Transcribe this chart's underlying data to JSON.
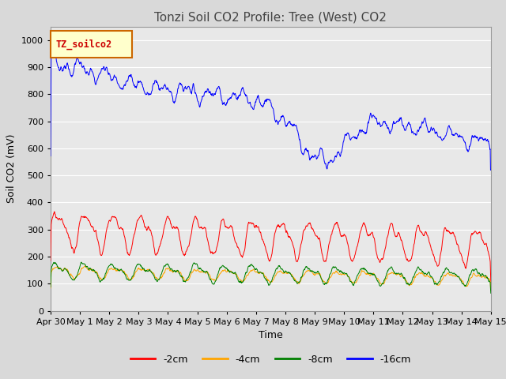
{
  "title": "Tonzi Soil CO2 Profile: Tree (West) CO2",
  "ylabel": "Soil CO2 (mV)",
  "xlabel": "Time",
  "legend_label": "TZ_soilco2",
  "series_labels": [
    "-2cm",
    "-4cm",
    "-8cm",
    "-16cm"
  ],
  "series_colors": [
    "red",
    "orange",
    "green",
    "blue"
  ],
  "ylim": [
    0,
    1050
  ],
  "yticks": [
    0,
    100,
    200,
    300,
    400,
    500,
    600,
    700,
    800,
    900,
    1000
  ],
  "background_color": "#d9d9d9",
  "plot_bg_color": "#e8e8e8",
  "n_points": 1500,
  "x_tick_labels": [
    "Apr 30",
    "May 1",
    "May 2",
    "May 3",
    "May 4",
    "May 5",
    "May 6",
    "May 7",
    "May 8",
    "May 9",
    "May 10",
    "May 11",
    "May 12",
    "May 13",
    "May 14",
    "May 15"
  ],
  "title_fontsize": 11,
  "axis_fontsize": 9,
  "tick_fontsize": 8,
  "legend_fontsize": 9
}
